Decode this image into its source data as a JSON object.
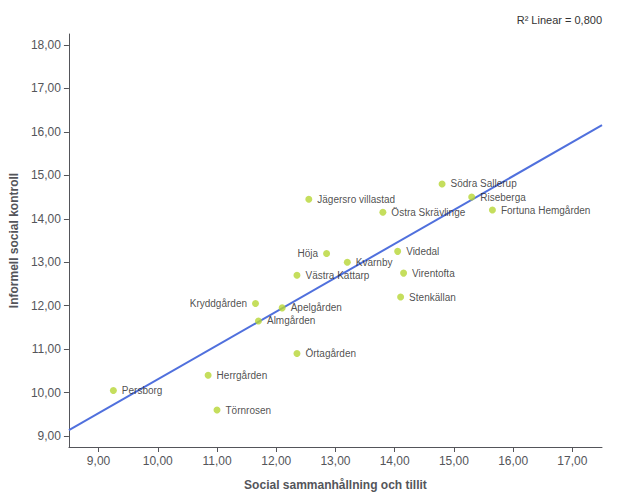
{
  "chart_data": {
    "type": "scatter",
    "xlabel": "Social sammanhållning och tillit",
    "ylabel": "Informell social kontroll",
    "annotation": "R² Linear = 0,800",
    "xlim": [
      8.5,
      17.5
    ],
    "ylim": [
      8.75,
      18.25
    ],
    "xticks": [
      {
        "value": 9,
        "label": "9,00"
      },
      {
        "value": 10,
        "label": "10,00"
      },
      {
        "value": 11,
        "label": "11,00"
      },
      {
        "value": 12,
        "label": "12,00"
      },
      {
        "value": 13,
        "label": "13,00"
      },
      {
        "value": 14,
        "label": "14,00"
      },
      {
        "value": 15,
        "label": "15,00"
      },
      {
        "value": 16,
        "label": "16,00"
      },
      {
        "value": 17,
        "label": "17,00"
      }
    ],
    "yticks": [
      {
        "value": 9,
        "label": "9,00"
      },
      {
        "value": 10,
        "label": "10,00"
      },
      {
        "value": 11,
        "label": "11,00"
      },
      {
        "value": 12,
        "label": "12,00"
      },
      {
        "value": 13,
        "label": "13,00"
      },
      {
        "value": 14,
        "label": "14,00"
      },
      {
        "value": 15,
        "label": "15,00"
      },
      {
        "value": 16,
        "label": "16,00"
      },
      {
        "value": 17,
        "label": "17,00"
      },
      {
        "value": 18,
        "label": "18,00"
      }
    ],
    "grid": false,
    "series": [
      {
        "type": "scatter",
        "labels": [
          "Persborg",
          "Törnrosen",
          "Herrgården",
          "Almgården",
          "Kryddgården",
          "Apelgården",
          "Örtagården",
          "Västra Kattarp",
          "Höja",
          "Kvarnby",
          "Jägersro villastad",
          "Östra Skrävlinge",
          "Videdal",
          "Virentofta",
          "Stenkällan",
          "Södra Sallerup",
          "Riseberga",
          "Fortuna Hemgården"
        ],
        "x": [
          9.25,
          11.0,
          10.85,
          11.7,
          11.65,
          12.1,
          12.35,
          12.35,
          12.85,
          13.2,
          12.55,
          13.8,
          14.05,
          14.15,
          14.1,
          14.8,
          15.3,
          15.65
        ],
        "y": [
          10.05,
          9.6,
          10.4,
          11.65,
          12.05,
          11.95,
          10.9,
          12.7,
          13.2,
          13.0,
          14.45,
          14.15,
          13.25,
          12.75,
          12.2,
          14.8,
          14.5,
          14.2
        ]
      },
      {
        "type": "line",
        "x": [
          8.5,
          17.5
        ],
        "y": [
          9.136,
          16.152
        ]
      }
    ]
  }
}
